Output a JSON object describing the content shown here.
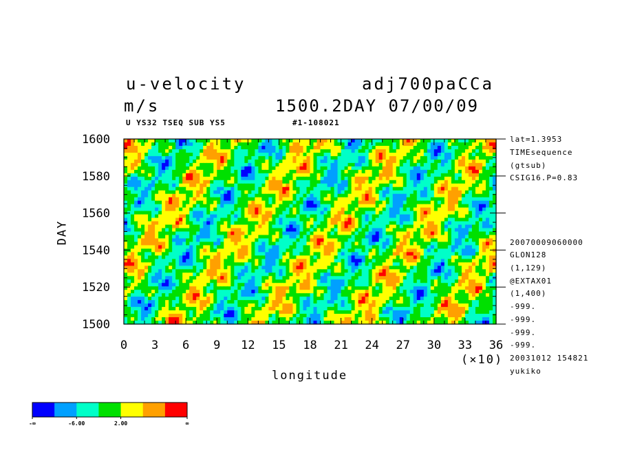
{
  "chart_data": {
    "type": "heatmap",
    "title": "u-velocity",
    "run_name": "adj700paCCa",
    "units": "m/s",
    "time_label": "1500.2DAY 07/00/09",
    "meta_left": "U YS32 TSEQ SUB YS5",
    "meta_right": "#1-108021",
    "xlabel": "longitude",
    "ylabel": "DAY",
    "x_scale_label": "(×10)",
    "xlim": [
      0,
      36
    ],
    "ylim": [
      1500,
      1600
    ],
    "x_ticks": [
      "0",
      "3",
      "6",
      "9",
      "12",
      "15",
      "18",
      "21",
      "24",
      "27",
      "30",
      "33",
      "36"
    ],
    "y_ticks": [
      "1500",
      "1520",
      "1540",
      "1560",
      "1580",
      "1600"
    ],
    "colorbar": {
      "colors": [
        "#0000ff",
        "#00a0ff",
        "#00ffc8",
        "#00e000",
        "#ffff00",
        "#ffa000",
        "#ff0000"
      ],
      "tick_labels": [
        "-∞",
        "-6.00",
        "2.00",
        "∞"
      ]
    },
    "side_info": [
      "lat=1.3953",
      "TIMEsequence",
      "(gtsub)",
      "CSIG16.P=0.83",
      "20070009060000",
      "GLON128",
      "(1,129)",
      "@EXTAX01",
      "(1,400)",
      "-999.",
      "-999.",
      "-999.",
      "-999.",
      "20031012 154821",
      "yukiko"
    ]
  }
}
